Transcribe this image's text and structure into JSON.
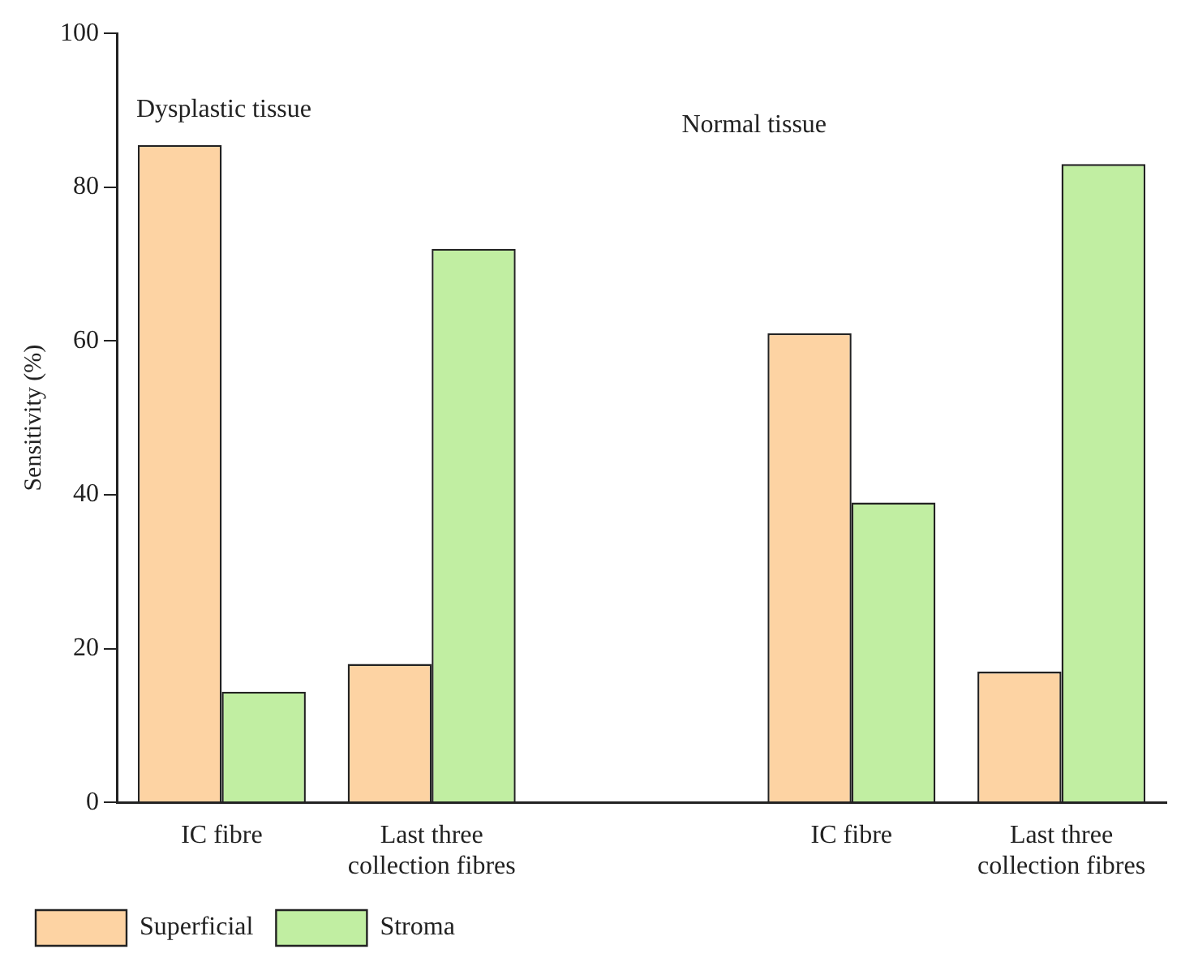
{
  "chart_data": {
    "type": "bar",
    "categories": [
      "IC fibre",
      "Last three collection fibres",
      null,
      "IC fibre",
      "Last three collection fibres"
    ],
    "series": [
      {
        "name": "Superficial",
        "color": "#fdd3a3",
        "values": [
          85.5,
          18.0,
          null,
          61.0,
          17.0
        ]
      },
      {
        "name": "Stroma",
        "color": "#c1eea2",
        "values": [
          14.4,
          72.0,
          null,
          39.0,
          83.0
        ]
      }
    ],
    "ylabel": "Sensitivity (%)",
    "ylim": [
      0,
      100
    ],
    "yticks": [
      0,
      20,
      40,
      60,
      80,
      100
    ],
    "annotations": [
      "Dysplastic tissue",
      "Normal tissue"
    ],
    "grid": false,
    "legend": "bottom"
  }
}
